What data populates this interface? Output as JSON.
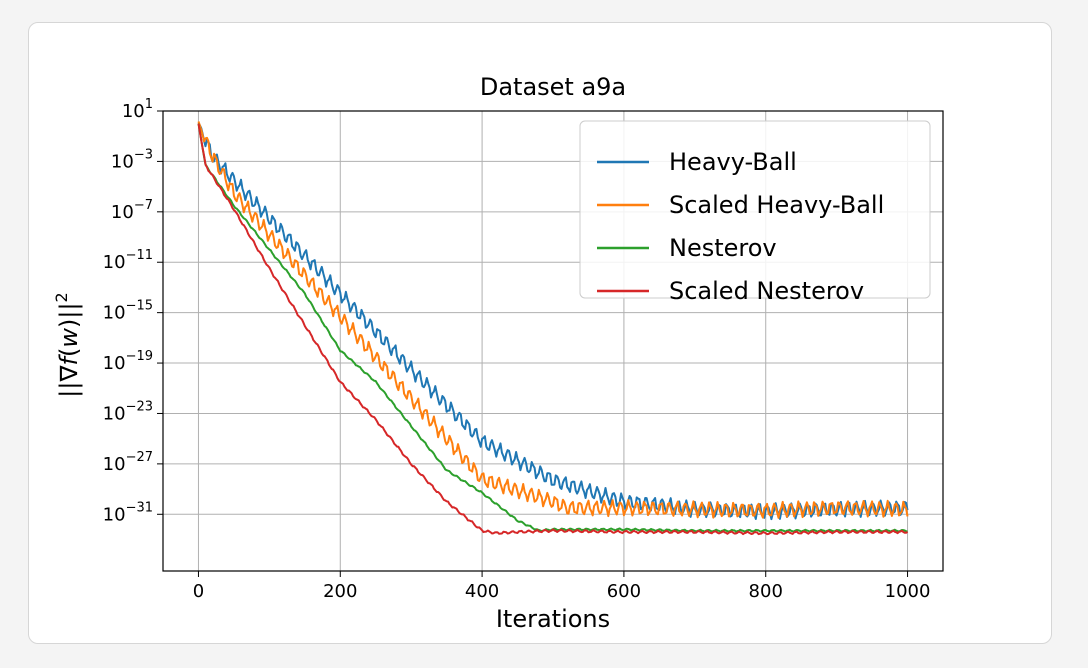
{
  "chart_data": {
    "type": "line",
    "title": "Dataset a9a",
    "xlabel": "Iterations",
    "ylabel_parts": {
      "open": "||",
      "nabla": "∇",
      "f": "f",
      "w": "w",
      "close": "||",
      "sup": "2"
    },
    "xlim": [
      -50,
      1050
    ],
    "ylim_log10": [
      -35.5,
      1
    ],
    "grid": true,
    "legend": "top-right",
    "x_ticks": [
      {
        "value": 0,
        "label": "0"
      },
      {
        "value": 200,
        "label": "200"
      },
      {
        "value": 400,
        "label": "400"
      },
      {
        "value": 600,
        "label": "600"
      },
      {
        "value": 800,
        "label": "800"
      },
      {
        "value": 1000,
        "label": "1000"
      }
    ],
    "y_ticks": [
      {
        "value": 1,
        "base": "10",
        "exp": "1"
      },
      {
        "value": -3,
        "base": "10",
        "exp": "−3"
      },
      {
        "value": -7,
        "base": "10",
        "exp": "−7"
      },
      {
        "value": -11,
        "base": "10",
        "exp": "−11"
      },
      {
        "value": -15,
        "base": "10",
        "exp": "−15"
      },
      {
        "value": -19,
        "base": "10",
        "exp": "−19"
      },
      {
        "value": -23,
        "base": "10",
        "exp": "−23"
      },
      {
        "value": -27,
        "base": "10",
        "exp": "−27"
      },
      {
        "value": -31,
        "base": "10",
        "exp": "−31"
      }
    ],
    "series": [
      {
        "name": "Heavy-Ball",
        "color": "#1f77b4",
        "x": [
          0,
          20,
          50,
          100,
          200,
          300,
          400,
          500,
          600,
          660,
          700,
          800,
          850,
          900,
          1000
        ],
        "y_log10": [
          0,
          -2.6,
          -4.5,
          -7.5,
          -13.5,
          -19.5,
          -25.2,
          -28.3,
          -30.0,
          -30.3,
          -30.6,
          -30.8,
          -30.7,
          -30.6,
          -30.5
        ],
        "oscillation_log10": 0.5
      },
      {
        "name": "Scaled Heavy-Ball",
        "color": "#ff7f0e",
        "x": [
          0,
          20,
          50,
          100,
          200,
          300,
          400,
          500,
          520,
          560,
          600,
          700,
          800,
          900,
          1000
        ],
        "y_log10": [
          0,
          -2.6,
          -5.5,
          -8.8,
          -15.3,
          -21.8,
          -28.2,
          -30.0,
          -30.5,
          -30.5,
          -30.5,
          -30.6,
          -30.7,
          -30.5,
          -30.6
        ],
        "oscillation_log10": 0.5
      },
      {
        "name": "Nesterov",
        "color": "#2ca02c",
        "x": [
          0,
          10,
          50,
          100,
          150,
          200,
          250,
          300,
          350,
          400,
          450,
          480,
          500,
          600,
          700,
          800,
          900,
          1000
        ],
        "y_log10": [
          0,
          -3.3,
          -6.5,
          -10.0,
          -13.5,
          -18.0,
          -20.5,
          -24.0,
          -27.5,
          -29.3,
          -31.5,
          -32.3,
          -32.2,
          -32.2,
          -32.3,
          -32.3,
          -32.3,
          -32.3
        ],
        "oscillation_log10": 0.06
      },
      {
        "name": "Scaled Nesterov",
        "color": "#d62728",
        "x": [
          0,
          10,
          50,
          100,
          150,
          200,
          250,
          300,
          350,
          400,
          420,
          450,
          500,
          600,
          700,
          800,
          900,
          1000
        ],
        "y_log10": [
          0,
          -3.3,
          -6.8,
          -11.5,
          -16.0,
          -20.5,
          -23.5,
          -27.0,
          -30.0,
          -32.3,
          -32.5,
          -32.4,
          -32.3,
          -32.4,
          -32.4,
          -32.5,
          -32.4,
          -32.4
        ],
        "oscillation_log10": 0.08
      }
    ]
  }
}
